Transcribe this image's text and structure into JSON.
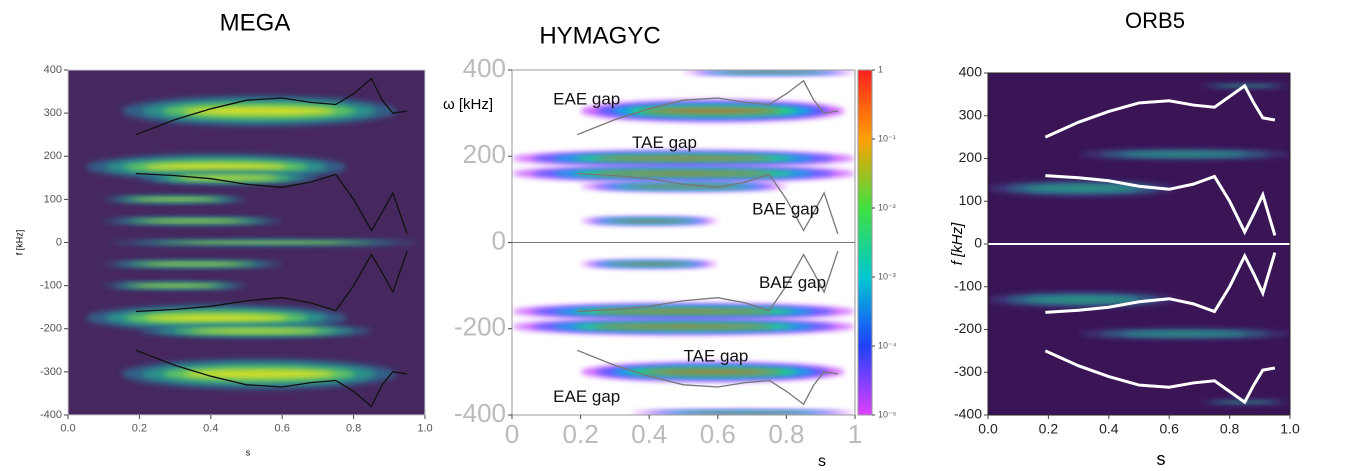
{
  "chart_data": [
    {
      "type": "spectrogram",
      "title": "MEGA",
      "y_label": "f [kHz]",
      "x_label": "s",
      "xlim": [
        0,
        1
      ],
      "ylim": [
        -400,
        400
      ],
      "xticks": [
        {
          "value": 0,
          "label": "0.0"
        },
        {
          "value": 0.2,
          "label": "0.2"
        },
        {
          "value": 0.4,
          "label": "0.4"
        },
        {
          "value": 0.6,
          "label": "0.6"
        },
        {
          "value": 0.8,
          "label": "0.8"
        },
        {
          "value": 1,
          "label": "1.0"
        }
      ],
      "yticks": [
        -400,
        -300,
        -200,
        -100,
        0,
        100,
        200,
        300,
        400
      ],
      "background": "#46285f",
      "band_colors": [
        "#2f6b8e",
        "#2a9d8a",
        "#6fcf57",
        "#f2e41e"
      ],
      "bands": [
        {
          "f": 305,
          "s": [
            0.15,
            0.92
          ],
          "w": 35
        },
        {
          "f": 175,
          "s": [
            0.05,
            0.78
          ],
          "w": 30
        },
        {
          "f": 150,
          "s": [
            0.2,
            0.7
          ],
          "w": 15
        },
        {
          "f": 100,
          "s": [
            0.1,
            0.5
          ],
          "w": 8
        },
        {
          "f": 50,
          "s": [
            0.1,
            0.6
          ],
          "w": 8
        },
        {
          "f": 0,
          "s": [
            0.12,
            0.98
          ],
          "w": 6
        },
        {
          "f": -50,
          "s": [
            0.1,
            0.6
          ],
          "w": 8
        },
        {
          "f": -100,
          "s": [
            0.1,
            0.5
          ],
          "w": 8
        },
        {
          "f": -175,
          "s": [
            0.05,
            0.78
          ],
          "w": 30
        },
        {
          "f": -205,
          "s": [
            0.2,
            0.85
          ],
          "w": 15
        },
        {
          "f": -305,
          "s": [
            0.15,
            0.92
          ],
          "w": 35
        }
      ],
      "x": [
        0.19,
        0.3,
        0.4,
        0.5,
        0.6,
        0.68,
        0.75,
        0.8,
        0.85,
        0.88,
        0.91,
        0.95
      ],
      "series": [
        {
          "color": "#111111",
          "values": [
            250,
            285,
            310,
            330,
            335,
            325,
            320,
            345,
            380,
            330,
            300,
            305
          ]
        },
        {
          "color": "#111111",
          "values": [
            160,
            155,
            148,
            135,
            128,
            140,
            158,
            100,
            28,
            70,
            115,
            20
          ]
        },
        {
          "color": "#111111",
          "values": [
            -160,
            -155,
            -148,
            -135,
            -128,
            -140,
            -158,
            -100,
            -28,
            -70,
            -115,
            -20
          ]
        },
        {
          "color": "#111111",
          "values": [
            -250,
            -285,
            -310,
            -330,
            -335,
            -325,
            -320,
            -345,
            -380,
            -330,
            -300,
            -305
          ]
        }
      ]
    },
    {
      "type": "spectrogram",
      "title": "HYMAGYC",
      "y_label": "ω [kHz]",
      "x_label": "s",
      "xlim": [
        0,
        1
      ],
      "ylim": [
        -400,
        400
      ],
      "xticks": [
        0,
        0.2,
        0.4,
        0.6,
        0.8,
        1
      ],
      "yticks": [
        -400,
        -200,
        0,
        200,
        400
      ],
      "background": "#ffffff",
      "band_colors": [
        "#c040ff",
        "#3060ff",
        "#00c8d0",
        "#40e040",
        "#ff3030"
      ],
      "bands": [
        {
          "f": 305,
          "s": [
            0.2,
            0.97
          ],
          "w": 25
        },
        {
          "f": 195,
          "s": [
            0.0,
            1.0
          ],
          "w": 18
        },
        {
          "f": 160,
          "s": [
            0.0,
            1.0
          ],
          "w": 18
        },
        {
          "f": 130,
          "s": [
            0.2,
            0.8
          ],
          "w": 10
        },
        {
          "f": 50,
          "s": [
            0.2,
            0.6
          ],
          "w": 8
        },
        {
          "f": -50,
          "s": [
            0.2,
            0.6
          ],
          "w": 8
        },
        {
          "f": -160,
          "s": [
            0.0,
            1.0
          ],
          "w": 18
        },
        {
          "f": -195,
          "s": [
            0.0,
            1.0
          ],
          "w": 18
        },
        {
          "f": -300,
          "s": [
            0.2,
            0.97
          ],
          "w": 22
        },
        {
          "f": -395,
          "s": [
            0.35,
            1.0
          ],
          "w": 6
        },
        {
          "f": 395,
          "s": [
            0.5,
            1.0
          ],
          "w": 6
        }
      ],
      "annotations": [
        "EAE gap",
        "TAE gap",
        "BAE gap",
        "BAE gap",
        "TAE gap",
        "EAE gap"
      ],
      "colorbar": {
        "scale": "log",
        "lim": [
          1e-05,
          1
        ],
        "ticks": [
          {
            "value": 1,
            "label": "1"
          },
          {
            "value": 0.1,
            "label": "10⁻¹"
          },
          {
            "value": 0.01,
            "label": "10⁻²"
          },
          {
            "value": 0.001,
            "label": "10⁻³"
          },
          {
            "value": 0.0001,
            "label": "10⁻⁴"
          },
          {
            "value": 1e-05,
            "label": "10⁻⁵"
          }
        ]
      },
      "x": [
        0.19,
        0.3,
        0.4,
        0.5,
        0.6,
        0.68,
        0.75,
        0.8,
        0.85,
        0.88,
        0.91,
        0.95
      ],
      "series": [
        {
          "color": "#777777",
          "values": [
            250,
            285,
            310,
            330,
            335,
            325,
            320,
            345,
            375,
            330,
            300,
            305
          ]
        },
        {
          "color": "#777777",
          "values": [
            160,
            155,
            148,
            135,
            128,
            140,
            158,
            100,
            28,
            70,
            115,
            20
          ]
        },
        {
          "color": "#777777",
          "values": [
            -160,
            -155,
            -148,
            -135,
            -128,
            -140,
            -158,
            -100,
            -28,
            -70,
            -115,
            -20
          ]
        },
        {
          "color": "#777777",
          "values": [
            -250,
            -285,
            -310,
            -330,
            -335,
            -325,
            -320,
            -345,
            -375,
            -330,
            -300,
            -305
          ]
        }
      ]
    },
    {
      "type": "spectrogram",
      "title": "ORB5",
      "y_label": "f [kHz]",
      "x_label": "s",
      "xlim": [
        0,
        1
      ],
      "ylim": [
        -400,
        400
      ],
      "xticks": [
        {
          "value": 0,
          "label": "0.0"
        },
        {
          "value": 0.2,
          "label": "0.2"
        },
        {
          "value": 0.4,
          "label": "0.4"
        },
        {
          "value": 0.6,
          "label": "0.6"
        },
        {
          "value": 0.8,
          "label": "0.8"
        },
        {
          "value": 1,
          "label": "1.0"
        }
      ],
      "yticks": [
        -400,
        -300,
        -200,
        -100,
        0,
        100,
        200,
        300,
        400
      ],
      "background": "#3a1556",
      "band_colors": [
        "#3d3d80",
        "#2c7a8c",
        "#2aa587"
      ],
      "bands": [
        {
          "f": 210,
          "s": [
            0.3,
            1.0
          ],
          "w": 12
        },
        {
          "f": 130,
          "s": [
            0.0,
            0.62
          ],
          "w": 18
        },
        {
          "f": 370,
          "s": [
            0.7,
            1.0
          ],
          "w": 5
        },
        {
          "f": -130,
          "s": [
            0.0,
            0.62
          ],
          "w": 18
        },
        {
          "f": -210,
          "s": [
            0.3,
            1.0
          ],
          "w": 12
        },
        {
          "f": -370,
          "s": [
            0.7,
            1.0
          ],
          "w": 5
        }
      ],
      "x": [
        0.19,
        0.3,
        0.4,
        0.5,
        0.6,
        0.68,
        0.75,
        0.8,
        0.85,
        0.88,
        0.91,
        0.95
      ],
      "series": [
        {
          "color": "#ffffff",
          "values": [
            250,
            285,
            310,
            330,
            335,
            325,
            320,
            345,
            370,
            330,
            295,
            290
          ]
        },
        {
          "color": "#ffffff",
          "values": [
            160,
            155,
            148,
            135,
            128,
            140,
            158,
            100,
            28,
            70,
            115,
            20
          ]
        },
        {
          "color": "#ffffff",
          "values": [
            -160,
            -155,
            -148,
            -135,
            -128,
            -140,
            -158,
            -100,
            -28,
            -70,
            -115,
            -20
          ]
        },
        {
          "color": "#ffffff",
          "values": [
            -250,
            -285,
            -310,
            -330,
            -335,
            -325,
            -320,
            -345,
            -370,
            -330,
            -295,
            -290
          ]
        }
      ]
    }
  ]
}
